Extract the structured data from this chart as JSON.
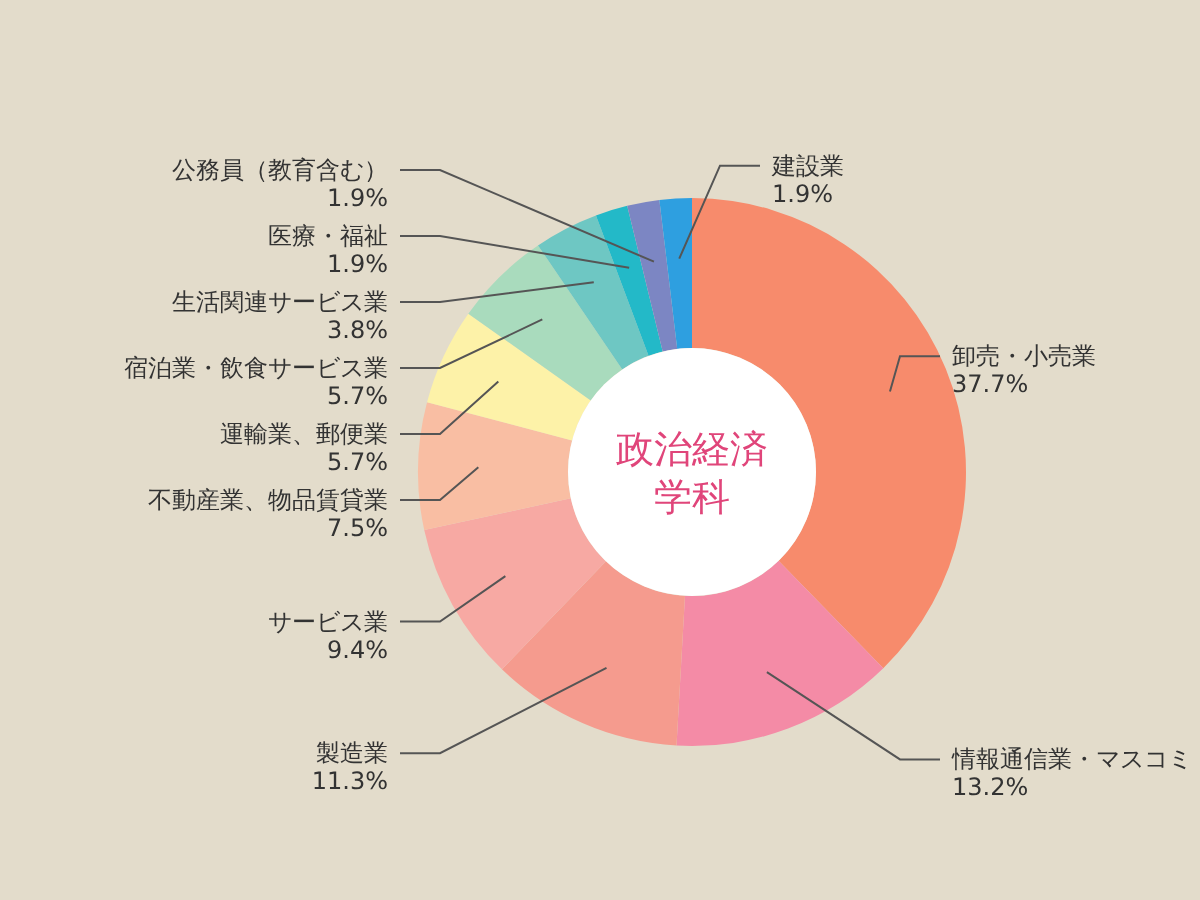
{
  "chart_data": {
    "type": "donut",
    "title": "政治経済学科",
    "categories": [
      "卸売・小売業",
      "情報通信業・マスコミ",
      "製造業",
      "サービス業",
      "不動産業、物品賃貸業",
      "運輸業、郵便業",
      "宿泊業・飲食サービス業",
      "生活関連サービス業",
      "医療・福祉",
      "公務員（教育含む）",
      "建設業"
    ],
    "values": [
      37.7,
      13.2,
      11.3,
      9.4,
      7.5,
      5.7,
      5.7,
      3.8,
      1.9,
      1.9,
      1.9
    ],
    "colors": [
      "#f78b6c",
      "#f48ba6",
      "#f59b8e",
      "#f7a9a3",
      "#f9bea3",
      "#fdf2a8",
      "#a9dbbd",
      "#6ec7c3",
      "#23b9c8",
      "#7c86c3",
      "#2e9fe0"
    ],
    "value_labels": [
      "37.7%",
      "13.2%",
      "11.3%",
      "9.4%",
      "7.5%",
      "5.7%",
      "5.7%",
      "3.8%",
      "1.9%",
      "1.9%",
      "1.9%"
    ]
  }
}
